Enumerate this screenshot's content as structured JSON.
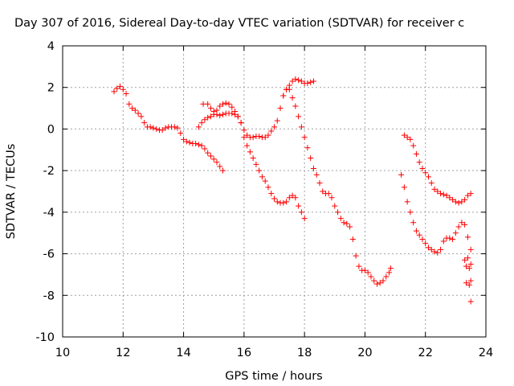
{
  "chart_data": {
    "type": "scatter",
    "title": "Day 307 of 2016, Sidereal Day-to-day VTEC variation (SDTVAR) for receiver c",
    "xlabel": "GPS time / hours",
    "ylabel": "SDTVAR / TECUs",
    "xlim": [
      10,
      24
    ],
    "ylim": [
      -10,
      4
    ],
    "xticks": [
      "10",
      "12",
      "14",
      "16",
      "18",
      "20",
      "22",
      "24"
    ],
    "yticks": [
      "4",
      "2",
      "0",
      "-2",
      "-4",
      "-6",
      "-8",
      "-10"
    ],
    "grid": true,
    "marker": "+",
    "color": "#ff0000",
    "series": [
      {
        "points": [
          [
            11.7,
            1.8
          ],
          [
            11.8,
            1.95
          ],
          [
            11.9,
            2.05
          ],
          [
            12.0,
            1.9
          ],
          [
            12.1,
            1.7
          ],
          [
            12.2,
            1.2
          ],
          [
            12.3,
            1.0
          ],
          [
            12.4,
            0.9
          ],
          [
            12.5,
            0.75
          ],
          [
            12.6,
            0.6
          ],
          [
            12.7,
            0.3
          ],
          [
            12.8,
            0.1
          ],
          [
            12.9,
            0.1
          ],
          [
            13.0,
            0.05
          ],
          [
            13.1,
            0.0
          ],
          [
            13.2,
            -0.05
          ],
          [
            13.3,
            -0.05
          ],
          [
            13.4,
            0.05
          ],
          [
            13.5,
            0.1
          ],
          [
            13.6,
            0.1
          ],
          [
            13.7,
            0.1
          ],
          [
            13.8,
            0.05
          ],
          [
            13.9,
            -0.2
          ],
          [
            14.0,
            -0.5
          ],
          [
            14.1,
            -0.6
          ],
          [
            14.2,
            -0.65
          ],
          [
            14.3,
            -0.7
          ],
          [
            14.4,
            -0.7
          ],
          [
            14.5,
            -0.75
          ],
          [
            14.6,
            -0.8
          ],
          [
            14.7,
            -0.95
          ],
          [
            14.8,
            -1.15
          ],
          [
            14.9,
            -1.3
          ],
          [
            15.0,
            -1.45
          ],
          [
            15.1,
            -1.6
          ],
          [
            15.2,
            -1.8
          ],
          [
            15.3,
            -2.0
          ]
        ]
      },
      {
        "points": [
          [
            14.5,
            0.1
          ],
          [
            14.6,
            0.3
          ],
          [
            14.7,
            0.45
          ],
          [
            14.8,
            0.55
          ],
          [
            14.9,
            0.6
          ],
          [
            15.0,
            0.7
          ],
          [
            15.1,
            0.7
          ],
          [
            15.2,
            0.65
          ],
          [
            15.3,
            0.7
          ],
          [
            15.4,
            0.75
          ],
          [
            15.5,
            0.75
          ],
          [
            15.6,
            0.75
          ],
          [
            15.7,
            0.7
          ],
          [
            15.8,
            0.6
          ],
          [
            15.9,
            0.3
          ],
          [
            16.0,
            -0.4
          ],
          [
            16.1,
            -0.8
          ],
          [
            16.2,
            -1.1
          ],
          [
            16.3,
            -1.4
          ],
          [
            16.4,
            -1.7
          ],
          [
            16.5,
            -2.0
          ],
          [
            16.6,
            -2.3
          ],
          [
            16.7,
            -2.5
          ],
          [
            16.8,
            -2.8
          ],
          [
            16.9,
            -3.1
          ],
          [
            17.0,
            -3.35
          ],
          [
            17.1,
            -3.5
          ],
          [
            17.2,
            -3.55
          ],
          [
            17.3,
            -3.55
          ],
          [
            17.4,
            -3.5
          ],
          [
            17.5,
            -3.3
          ],
          [
            17.6,
            -3.2
          ],
          [
            17.7,
            -3.3
          ],
          [
            17.8,
            -3.7
          ],
          [
            17.9,
            -4.0
          ],
          [
            18.0,
            -4.3
          ]
        ]
      },
      {
        "points": [
          [
            14.65,
            1.2
          ],
          [
            14.8,
            1.2
          ],
          [
            14.9,
            1.0
          ],
          [
            15.0,
            0.85
          ],
          [
            15.1,
            0.9
          ],
          [
            15.2,
            1.1
          ],
          [
            15.3,
            1.2
          ],
          [
            15.4,
            1.25
          ],
          [
            15.5,
            1.2
          ],
          [
            15.6,
            1.05
          ],
          [
            15.7,
            0.85
          ],
          [
            15.8,
            0.6
          ],
          [
            15.9,
            0.3
          ],
          [
            16.0,
            -0.05
          ],
          [
            16.1,
            -0.3
          ],
          [
            16.2,
            -0.4
          ],
          [
            16.3,
            -0.4
          ],
          [
            16.4,
            -0.35
          ],
          [
            16.5,
            -0.35
          ],
          [
            16.6,
            -0.4
          ],
          [
            16.7,
            -0.4
          ],
          [
            16.8,
            -0.3
          ],
          [
            16.9,
            -0.1
          ],
          [
            17.0,
            0.1
          ],
          [
            17.1,
            0.4
          ],
          [
            17.2,
            1.0
          ],
          [
            17.3,
            1.6
          ],
          [
            17.4,
            1.9
          ],
          [
            17.5,
            1.9
          ],
          [
            17.6,
            1.5
          ],
          [
            17.7,
            1.1
          ],
          [
            17.8,
            0.6
          ],
          [
            17.9,
            0.1
          ],
          [
            18.0,
            -0.4
          ],
          [
            18.1,
            -0.9
          ],
          [
            18.2,
            -1.4
          ],
          [
            18.3,
            -1.9
          ],
          [
            18.4,
            -2.2
          ],
          [
            18.5,
            -2.6
          ],
          [
            18.6,
            -3.0
          ],
          [
            18.7,
            -3.1
          ],
          [
            18.8,
            -3.1
          ],
          [
            18.9,
            -3.3
          ],
          [
            19.0,
            -3.7
          ],
          [
            19.1,
            -4.0
          ],
          [
            19.2,
            -4.3
          ],
          [
            19.3,
            -4.5
          ],
          [
            19.4,
            -4.55
          ],
          [
            19.5,
            -4.7
          ],
          [
            19.6,
            -5.3
          ],
          [
            19.7,
            -6.1
          ],
          [
            19.8,
            -6.6
          ],
          [
            19.9,
            -6.8
          ],
          [
            20.0,
            -6.8
          ],
          [
            20.1,
            -6.9
          ],
          [
            20.2,
            -7.1
          ],
          [
            20.3,
            -7.3
          ],
          [
            20.4,
            -7.45
          ],
          [
            20.5,
            -7.4
          ],
          [
            20.6,
            -7.3
          ],
          [
            20.7,
            -7.1
          ],
          [
            20.8,
            -6.9
          ],
          [
            20.85,
            -6.7
          ]
        ]
      },
      {
        "points": [
          [
            17.3,
            1.6
          ],
          [
            17.4,
            1.9
          ],
          [
            17.5,
            2.1
          ],
          [
            17.6,
            2.3
          ],
          [
            17.7,
            2.4
          ],
          [
            17.8,
            2.35
          ],
          [
            17.9,
            2.3
          ],
          [
            18.0,
            2.2
          ],
          [
            18.1,
            2.2
          ],
          [
            18.2,
            2.25
          ],
          [
            18.3,
            2.3
          ]
        ]
      },
      {
        "points": [
          [
            21.2,
            -2.2
          ],
          [
            21.3,
            -2.8
          ],
          [
            21.4,
            -3.5
          ],
          [
            21.5,
            -4.0
          ],
          [
            21.6,
            -4.5
          ],
          [
            21.7,
            -4.9
          ],
          [
            21.8,
            -5.1
          ],
          [
            21.9,
            -5.3
          ],
          [
            22.0,
            -5.5
          ],
          [
            22.1,
            -5.7
          ],
          [
            22.2,
            -5.8
          ],
          [
            22.3,
            -5.9
          ],
          [
            22.4,
            -5.95
          ],
          [
            22.5,
            -5.8
          ],
          [
            22.6,
            -5.4
          ],
          [
            22.7,
            -5.25
          ],
          [
            22.8,
            -5.25
          ],
          [
            22.9,
            -5.3
          ],
          [
            23.0,
            -5.0
          ],
          [
            23.1,
            -4.7
          ],
          [
            23.2,
            -4.5
          ],
          [
            23.3,
            -4.6
          ],
          [
            23.4,
            -5.2
          ],
          [
            23.5,
            -5.8
          ]
        ]
      },
      {
        "points": [
          [
            23.3,
            -6.3
          ],
          [
            23.35,
            -6.6
          ],
          [
            23.4,
            -6.2
          ],
          [
            23.45,
            -6.7
          ],
          [
            23.5,
            -6.5
          ],
          [
            23.35,
            -7.4
          ],
          [
            23.45,
            -7.5
          ],
          [
            23.5,
            -7.3
          ],
          [
            23.5,
            -8.3
          ]
        ]
      },
      {
        "points": [
          [
            21.3,
            -0.3
          ],
          [
            21.4,
            -0.4
          ],
          [
            21.5,
            -0.5
          ],
          [
            21.6,
            -0.8
          ],
          [
            21.7,
            -1.2
          ],
          [
            21.8,
            -1.6
          ],
          [
            21.9,
            -1.9
          ],
          [
            22.0,
            -2.1
          ],
          [
            22.1,
            -2.3
          ],
          [
            22.2,
            -2.6
          ],
          [
            22.3,
            -2.9
          ],
          [
            22.4,
            -3.0
          ],
          [
            22.5,
            -3.1
          ],
          [
            22.6,
            -3.15
          ],
          [
            22.7,
            -3.2
          ],
          [
            22.8,
            -3.3
          ],
          [
            22.9,
            -3.4
          ],
          [
            23.0,
            -3.5
          ],
          [
            23.1,
            -3.55
          ],
          [
            23.2,
            -3.5
          ],
          [
            23.3,
            -3.4
          ],
          [
            23.4,
            -3.2
          ],
          [
            23.5,
            -3.1
          ]
        ]
      }
    ]
  }
}
